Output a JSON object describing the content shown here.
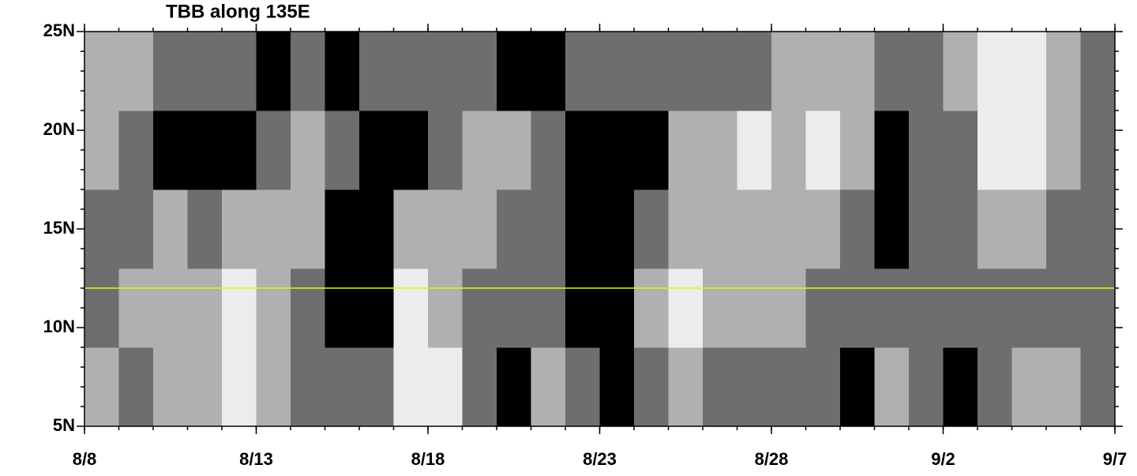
{
  "chart_data": {
    "type": "heatmap",
    "title": "TBB along 135E",
    "xlim": [
      0,
      30
    ],
    "xticks": [
      {
        "value": 0,
        "label": "8/8"
      },
      {
        "value": 5,
        "label": "8/13"
      },
      {
        "value": 10,
        "label": "8/18"
      },
      {
        "value": 15,
        "label": "8/23"
      },
      {
        "value": 20,
        "label": "8/28"
      },
      {
        "value": 25,
        "label": "9/2"
      },
      {
        "value": 30,
        "label": "9/7"
      }
    ],
    "ylim": [
      5,
      25
    ],
    "yticks": [
      {
        "value": 5,
        "label": "5N"
      },
      {
        "value": 10,
        "label": "10N"
      },
      {
        "value": 15,
        "label": "15N"
      },
      {
        "value": 20,
        "label": "20N"
      },
      {
        "value": 25,
        "label": "25N"
      }
    ],
    "x_edges": [
      0,
      1,
      2,
      3,
      4,
      5,
      6,
      7,
      8,
      9,
      10,
      11,
      12,
      13,
      14,
      15,
      16,
      17,
      18,
      19,
      20,
      21,
      22,
      23,
      24,
      25,
      26,
      27,
      28,
      29,
      30
    ],
    "y_edges": [
      5,
      9,
      13,
      17,
      21,
      25
    ],
    "z": [
      [
        2,
        1,
        2,
        2,
        3,
        2,
        1,
        1,
        1,
        3,
        3,
        1,
        0,
        2,
        1,
        0,
        1,
        2,
        1,
        1,
        1,
        1,
        0,
        2,
        1,
        0,
        1,
        2,
        2,
        1
      ],
      [
        1,
        2,
        2,
        2,
        3,
        2,
        1,
        0,
        0,
        3,
        2,
        1,
        1,
        1,
        0,
        0,
        2,
        3,
        2,
        2,
        2,
        1,
        1,
        1,
        1,
        1,
        1,
        1,
        1,
        1
      ],
      [
        1,
        1,
        2,
        1,
        2,
        2,
        2,
        0,
        0,
        2,
        2,
        2,
        1,
        1,
        0,
        0,
        1,
        2,
        2,
        2,
        2,
        2,
        1,
        0,
        1,
        1,
        2,
        2,
        1,
        1
      ],
      [
        2,
        1,
        0,
        0,
        0,
        1,
        2,
        1,
        0,
        0,
        1,
        2,
        2,
        1,
        0,
        0,
        0,
        2,
        2,
        3,
        2,
        3,
        2,
        0,
        1,
        1,
        3,
        3,
        2,
        1
      ],
      [
        2,
        2,
        1,
        1,
        1,
        0,
        1,
        0,
        1,
        1,
        1,
        1,
        0,
        0,
        1,
        1,
        1,
        1,
        1,
        1,
        2,
        2,
        2,
        1,
        1,
        2,
        3,
        3,
        2,
        1
      ]
    ],
    "colors": [
      "#000000",
      "#6e6e6e",
      "#b0b0b0",
      "#ececec"
    ],
    "reference_line": {
      "value": 12,
      "color": "#f0f000"
    }
  }
}
